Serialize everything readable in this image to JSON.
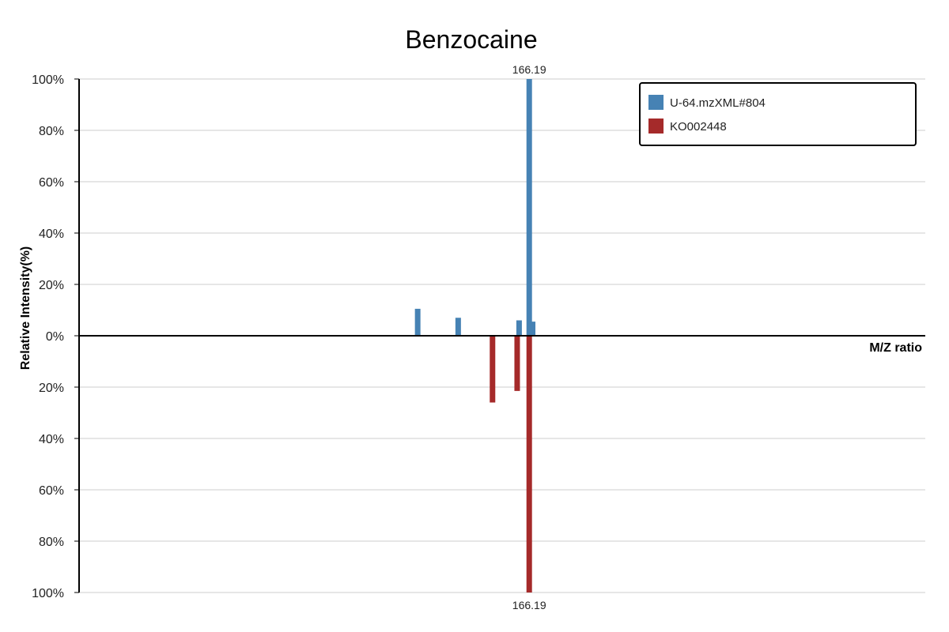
{
  "chart_data": {
    "type": "bar",
    "title": "Benzocaine",
    "xlabel": "M/Z ratio",
    "ylabel": "Relative Intensity(%)",
    "ylim": [
      -100,
      100
    ],
    "y_ticks": [
      "100%",
      "80%",
      "60%",
      "40%",
      "20%",
      "0%",
      "20%",
      "40%",
      "60%",
      "80%",
      "100%"
    ],
    "grid": true,
    "legend_position": "top-right",
    "series": [
      {
        "name": "U-64.mzXML#804",
        "color": "#4682b4",
        "direction": "up",
        "points": [
          {
            "mz": 120.05,
            "intensity": 10.5
          },
          {
            "mz": 136.8,
            "intensity": 7.0
          },
          {
            "mz": 162.0,
            "intensity": 6.0
          },
          {
            "mz": 166.19,
            "intensity": 100,
            "label": "166.19"
          },
          {
            "mz": 167.6,
            "intensity": 5.5
          }
        ]
      },
      {
        "name": "KO002448",
        "color": "#a52a2a",
        "direction": "down",
        "points": [
          {
            "mz": 151.0,
            "intensity": 26.0
          },
          {
            "mz": 161.2,
            "intensity": 21.5
          },
          {
            "mz": 166.19,
            "intensity": 100,
            "label": "166.19"
          }
        ]
      }
    ],
    "x_range": [
      -20,
      330
    ]
  }
}
